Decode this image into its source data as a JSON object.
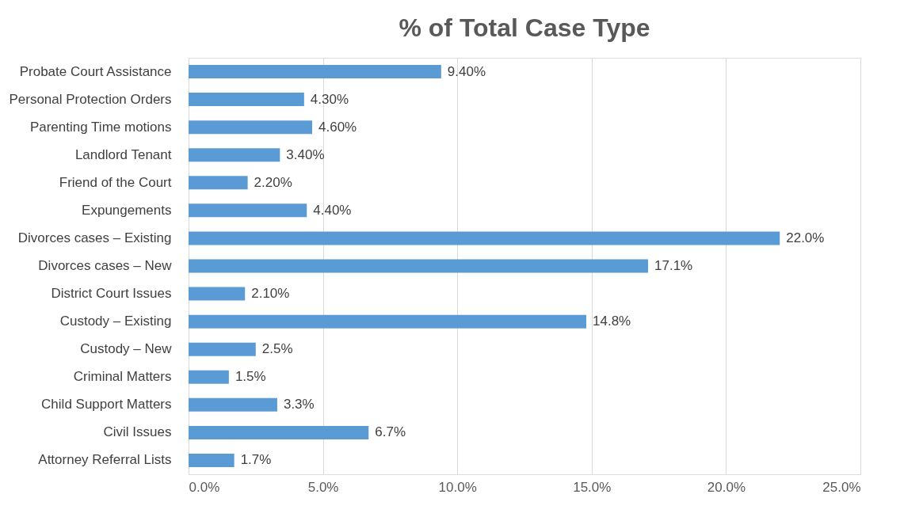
{
  "chart_data": {
    "type": "bar",
    "orientation": "horizontal",
    "title": "% of Total Case Type",
    "categories": [
      "Probate Court Assistance",
      "Personal Protection Orders",
      "Parenting Time motions",
      "Landlord Tenant",
      "Friend of the Court",
      "Expungements",
      "Divorces cases – Existing",
      "Divorces cases – New",
      "District Court Issues",
      "Custody – Existing",
      "Custody – New",
      "Criminal Matters",
      "Child Support Matters",
      "Civil Issues",
      "Attorney Referral Lists"
    ],
    "values": [
      9.4,
      4.3,
      4.6,
      3.4,
      2.2,
      4.4,
      22.0,
      17.1,
      2.1,
      14.8,
      2.5,
      1.5,
      3.3,
      6.7,
      1.7
    ],
    "value_labels": [
      "9.40%",
      "4.30%",
      "4.60%",
      "3.40%",
      "2.20%",
      "4.40%",
      "22.0%",
      "17.1%",
      "2.10%",
      "14.8%",
      "2.5%",
      "1.5%",
      "3.3%",
      "6.7%",
      "1.7%"
    ],
    "color": "#5b9bd5",
    "xlim": [
      0,
      25
    ],
    "xticks": [
      {
        "value": 0,
        "label": "0.0%"
      },
      {
        "value": 5,
        "label": "5.0%"
      },
      {
        "value": 10,
        "label": "10.0%"
      },
      {
        "value": 15,
        "label": "15.0%"
      },
      {
        "value": 20,
        "label": "20.0%"
      },
      {
        "value": 25,
        "label": "25.0%"
      }
    ],
    "grid": "x"
  }
}
